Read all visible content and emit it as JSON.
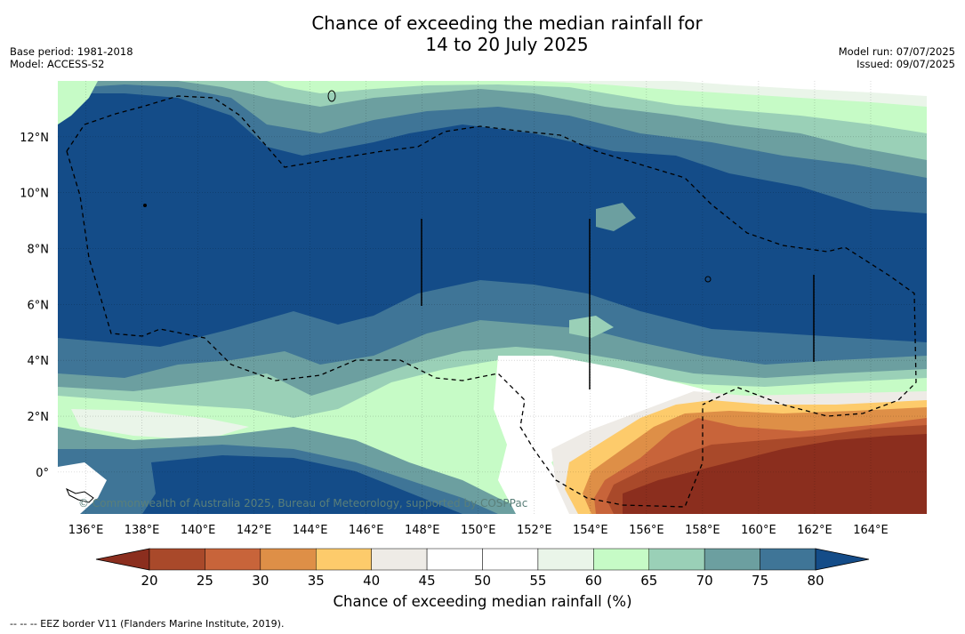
{
  "title": {
    "line1": "Chance of exceeding the median rainfall for",
    "line2": "14 to 20 July 2025"
  },
  "meta_left": {
    "base_period": "Base period: 1981-2018",
    "model": "Model: ACCESS-S2"
  },
  "meta_right": {
    "model_run": "Model run: 07/07/2025",
    "issued": "Issued: 09/07/2025"
  },
  "map": {
    "x_range": [
      135,
      166
    ],
    "y_range": [
      -1.5,
      14
    ],
    "lon_ticks": [
      "136°E",
      "138°E",
      "140°E",
      "142°E",
      "144°E",
      "146°E",
      "148°E",
      "150°E",
      "152°E",
      "154°E",
      "156°E",
      "158°E",
      "160°E",
      "162°E",
      "164°E"
    ],
    "lon_values": [
      136,
      138,
      140,
      142,
      144,
      146,
      148,
      150,
      152,
      154,
      156,
      158,
      160,
      162,
      164
    ],
    "lat_ticks": [
      "12°N",
      "10°N",
      "8°N",
      "6°N",
      "4°N",
      "2°N",
      "0°"
    ],
    "lat_values": [
      12,
      10,
      8,
      6,
      4,
      2,
      0
    ],
    "copyright": "© Commonwealth of Australia 2025, Bureau of Meteorology, supported by COSPPac"
  },
  "colorbar": {
    "labels": [
      "20",
      "25",
      "30",
      "35",
      "40",
      "45",
      "50",
      "55",
      "60",
      "65",
      "70",
      "75",
      "80"
    ],
    "colors": [
      "#8b2e1e",
      "#a9492a",
      "#c8643a",
      "#de8f47",
      "#fdcb6b",
      "#eeebe6",
      "#ffffff",
      "#ffffff",
      "#eaf5e9",
      "#c6fbc6",
      "#9ad0b7",
      "#6c9fa0",
      "#3f7597",
      "#144c88"
    ],
    "title": "Chance of exceeding median rainfall (%)"
  },
  "footnote": "--  --  -- EEZ border V11 (Flanders Marine Institute, 2019)."
}
